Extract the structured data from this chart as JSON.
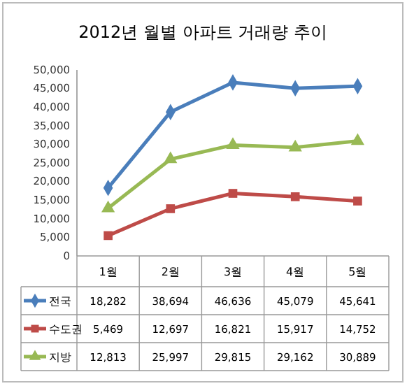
{
  "chart_data": {
    "type": "line",
    "title": "2012년 월별 아파트 거래량 추이",
    "categories": [
      "1월",
      "2월",
      "3월",
      "4월",
      "5월"
    ],
    "series": [
      {
        "name": "전국",
        "color": "#4a7ebb",
        "marker": "diamond",
        "values": [
          18282,
          38694,
          46636,
          45079,
          45641
        ],
        "value_labels": [
          "18,282",
          "38,694",
          "46,636",
          "45,079",
          "45,641"
        ]
      },
      {
        "name": "수도권",
        "color": "#be4b48",
        "marker": "square",
        "values": [
          5469,
          12697,
          16821,
          15917,
          14752
        ],
        "value_labels": [
          "5,469",
          "12,697",
          "16,821",
          "15,917",
          "14,752"
        ]
      },
      {
        "name": "지방",
        "color": "#98b954",
        "marker": "triangle",
        "values": [
          12813,
          25997,
          29815,
          29162,
          30889
        ],
        "value_labels": [
          "12,813",
          "25,997",
          "29,815",
          "29,162",
          "30,889"
        ]
      }
    ],
    "ylim": [
      0,
      50000
    ],
    "yticks": [
      {
        "value": 0,
        "label": "0"
      },
      {
        "value": 5000,
        "label": "5,000"
      },
      {
        "value": 10000,
        "label": "10,000"
      },
      {
        "value": 15000,
        "label": "15,000"
      },
      {
        "value": 20000,
        "label": "20,000"
      },
      {
        "value": 25000,
        "label": "25,000"
      },
      {
        "value": 30000,
        "label": "30,000"
      },
      {
        "value": 35000,
        "label": "35,000"
      },
      {
        "value": 40000,
        "label": "40,000"
      },
      {
        "value": 45000,
        "label": "45,000"
      },
      {
        "value": 50000,
        "label": "50,000"
      }
    ],
    "grid": false,
    "legend": "bottom"
  }
}
